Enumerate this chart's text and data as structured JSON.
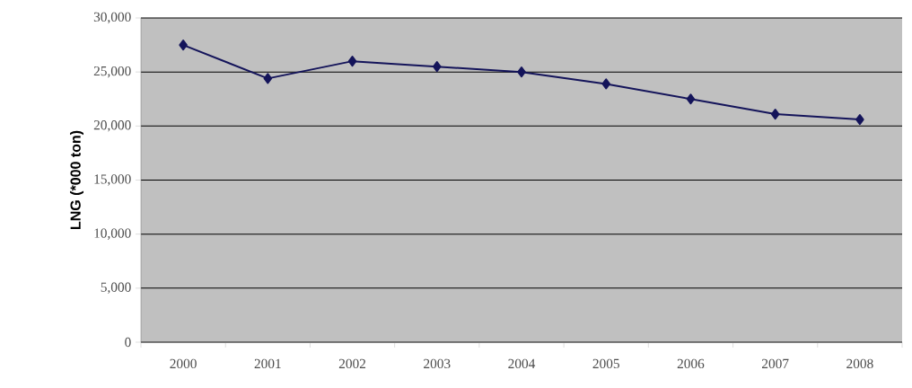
{
  "chart_data": {
    "type": "line",
    "ylabel": "LNG (*000 ton)",
    "categories": [
      "2000",
      "2001",
      "2002",
      "2003",
      "2004",
      "2005",
      "2006",
      "2007",
      "2008"
    ],
    "series": [
      {
        "color": "#14145a",
        "values": [
          27500,
          24400,
          26000,
          25500,
          25000,
          23900,
          22500,
          21100,
          20600
        ]
      }
    ],
    "ylim": [
      0,
      30000
    ],
    "yticks": [
      {
        "value": 0,
        "label": "0"
      },
      {
        "value": 5000,
        "label": "5,000"
      },
      {
        "value": 10000,
        "label": "10,000"
      },
      {
        "value": 15000,
        "label": "15,000"
      },
      {
        "value": 20000,
        "label": "20,000"
      },
      {
        "value": 25000,
        "label": "25,000"
      },
      {
        "value": 30000,
        "label": "30,000"
      }
    ],
    "grid": "y",
    "marker": "diamond",
    "line_style": "solid"
  }
}
